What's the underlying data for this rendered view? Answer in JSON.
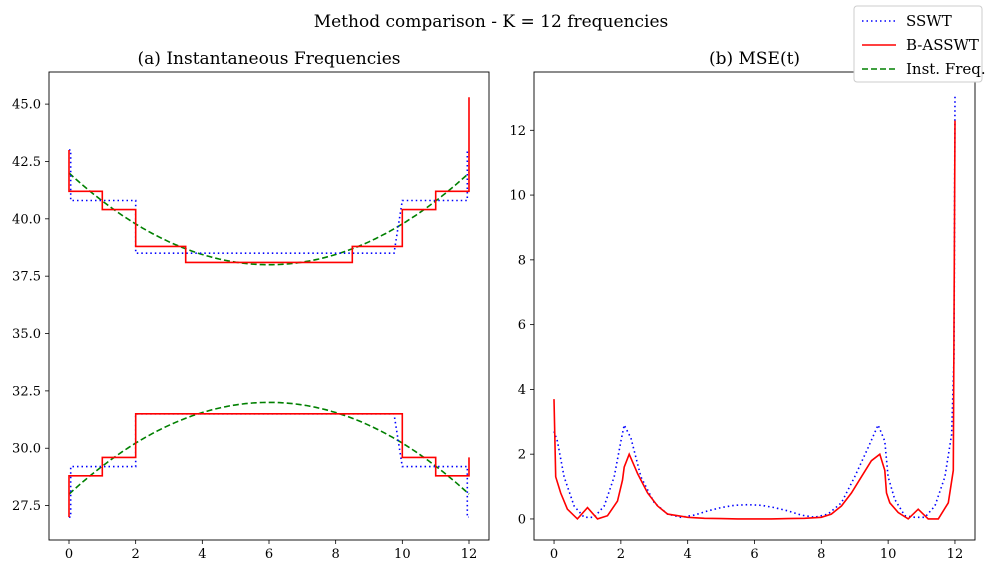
{
  "figure": {
    "suptitle": "Method comparison - K = 12 frequencies"
  },
  "legend": {
    "placement": "top-right",
    "entries": [
      {
        "label": "SSWT",
        "color": "#0000ff",
        "style": "dotted"
      },
      {
        "label": "B-ASSWT",
        "color": "#ff0000",
        "style": "solid"
      },
      {
        "label": "Inst. Freq.",
        "color": "#008000",
        "style": "dashed"
      }
    ]
  },
  "chart_data": [
    {
      "type": "line",
      "title": "(a) Instantaneous Frequencies",
      "xlabel": "",
      "ylabel": "",
      "xlim": [
        -0.6,
        12.6
      ],
      "ylim": [
        26.0,
        46.4
      ],
      "xticks": [
        0,
        2,
        4,
        6,
        8,
        10,
        12
      ],
      "yticks": [
        27.5,
        30.0,
        32.5,
        35.0,
        37.5,
        40.0,
        42.5,
        45.0
      ],
      "ytick_labels": [
        "27.5",
        "30.0",
        "32.5",
        "35.0",
        "37.5",
        "40.0",
        "42.5",
        "45.0"
      ],
      "series": [
        {
          "name": "Inst. Freq. (upper)",
          "color": "#008000",
          "style": "dashed",
          "formula": "38 + (t-6)^2/9",
          "x_range": [
            0,
            12
          ]
        },
        {
          "name": "Inst. Freq. (lower)",
          "color": "#008000",
          "style": "dashed",
          "formula": "32 - (t-6)^2/9",
          "x_range": [
            0,
            12
          ]
        },
        {
          "name": "SSWT (upper)",
          "color": "#0000ff",
          "style": "dotted",
          "x": [
            0,
            0.05,
            0.05,
            2.0,
            2.0,
            2.25,
            2.25,
            9.75,
            9.75,
            10.0,
            10.0,
            11.95,
            11.95,
            12
          ],
          "y": [
            43.0,
            43.0,
            40.8,
            40.8,
            38.5,
            38.5,
            38.5,
            38.5,
            38.5,
            40.8,
            40.8,
            40.8,
            43.0,
            43.0
          ]
        },
        {
          "name": "SSWT (lower)",
          "color": "#0000ff",
          "style": "dotted",
          "x": [
            0,
            0.05,
            0.05,
            2.0,
            2.0,
            2.25,
            2.25,
            9.75,
            9.75,
            10.0,
            10.0,
            11.95,
            11.95,
            12
          ],
          "y": [
            27.0,
            27.0,
            29.2,
            29.2,
            31.5,
            31.5,
            31.5,
            31.5,
            31.5,
            29.2,
            29.2,
            29.2,
            27.0,
            27.0
          ]
        },
        {
          "name": "B-ASSWT (upper)",
          "color": "#ff0000",
          "style": "solid",
          "x": [
            0,
            0,
            0.05,
            1.0,
            1.0,
            2.0,
            2.0,
            3.5,
            3.5,
            8.5,
            8.5,
            10.0,
            10.0,
            11.0,
            11.0,
            11.95,
            12,
            12
          ],
          "y": [
            43.0,
            41.2,
            41.2,
            41.2,
            40.4,
            40.4,
            38.8,
            38.8,
            38.1,
            38.1,
            38.8,
            38.8,
            40.4,
            40.4,
            41.2,
            41.2,
            41.2,
            45.3
          ]
        },
        {
          "name": "B-ASSWT (lower)",
          "color": "#ff0000",
          "style": "solid",
          "x": [
            0,
            0,
            0.05,
            1.0,
            1.0,
            2.0,
            2.0,
            10.0,
            10.0,
            11.0,
            11.0,
            11.95,
            12,
            12
          ],
          "y": [
            27.0,
            28.8,
            28.8,
            28.8,
            29.6,
            29.6,
            31.5,
            31.5,
            29.6,
            29.6,
            28.8,
            28.8,
            28.8,
            29.6
          ]
        }
      ]
    },
    {
      "type": "line",
      "title": "(b) MSE(t)",
      "xlabel": "",
      "ylabel": "",
      "xlim": [
        -0.6,
        12.6
      ],
      "ylim": [
        -0.65,
        13.8
      ],
      "xticks": [
        0,
        2,
        4,
        6,
        8,
        10,
        12
      ],
      "yticks": [
        0,
        2,
        4,
        6,
        8,
        10,
        12
      ],
      "series": [
        {
          "name": "SSWT",
          "color": "#0000ff",
          "style": "dotted",
          "x": [
            0,
            0.1,
            0.3,
            0.6,
            0.9,
            1.2,
            1.5,
            1.8,
            2.0,
            2.1,
            2.3,
            2.6,
            3.0,
            3.4,
            3.8,
            4.2,
            4.6,
            5.0,
            5.4,
            5.8,
            6.0,
            6.2,
            6.6,
            7.0,
            7.4,
            7.8,
            8.2,
            8.6,
            9.0,
            9.4,
            9.7,
            9.9,
            10.0,
            10.2,
            10.5,
            10.8,
            11.1,
            11.4,
            11.7,
            11.9,
            11.97,
            12.0
          ],
          "y": [
            2.7,
            2.4,
            1.3,
            0.4,
            0.05,
            0.05,
            0.4,
            1.3,
            2.4,
            2.9,
            2.5,
            1.3,
            0.5,
            0.15,
            0.05,
            0.12,
            0.25,
            0.35,
            0.42,
            0.44,
            0.43,
            0.42,
            0.35,
            0.25,
            0.12,
            0.05,
            0.15,
            0.5,
            1.3,
            2.2,
            2.9,
            2.4,
            1.3,
            0.6,
            0.1,
            0.05,
            0.05,
            0.4,
            1.3,
            2.6,
            5.0,
            13.1
          ]
        },
        {
          "name": "B-ASSWT",
          "color": "#ff0000",
          "style": "solid",
          "x": [
            0,
            0.05,
            0.2,
            0.4,
            0.7,
            1.0,
            1.3,
            1.6,
            1.9,
            2.05,
            2.1,
            2.25,
            2.5,
            2.8,
            3.1,
            3.4,
            3.7,
            4.0,
            4.5,
            5.0,
            5.5,
            6.0,
            6.5,
            7.0,
            7.5,
            8.0,
            8.3,
            8.6,
            8.9,
            9.2,
            9.5,
            9.75,
            9.9,
            9.95,
            10.05,
            10.3,
            10.6,
            10.9,
            11.2,
            11.5,
            11.8,
            11.95,
            12.0
          ],
          "y": [
            3.7,
            1.3,
            0.8,
            0.3,
            0.0,
            0.35,
            0.0,
            0.1,
            0.55,
            1.2,
            1.6,
            2.0,
            1.4,
            0.8,
            0.4,
            0.15,
            0.1,
            0.05,
            0.02,
            0.01,
            0.0,
            0.0,
            0.0,
            0.01,
            0.02,
            0.05,
            0.15,
            0.4,
            0.8,
            1.3,
            1.8,
            2.0,
            1.5,
            0.8,
            0.5,
            0.2,
            0.0,
            0.3,
            0.0,
            0.0,
            0.5,
            1.5,
            12.3
          ]
        }
      ]
    }
  ]
}
